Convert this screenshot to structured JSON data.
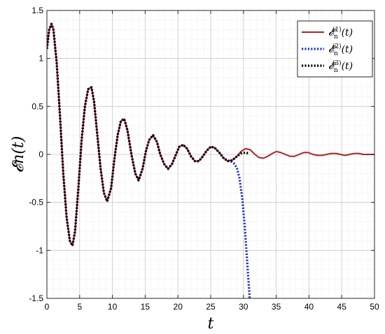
{
  "chart_data": {
    "type": "line",
    "xlabel": "t",
    "ylabel": "𝓔n(t)",
    "xlim": [
      0,
      50
    ],
    "ylim": [
      -1.5,
      1.5
    ],
    "xticks": [
      "0",
      "5",
      "10",
      "15",
      "20",
      "25",
      "30",
      "35",
      "40",
      "45",
      "50"
    ],
    "yticks": [
      "1.5",
      "1",
      "0.5",
      "0",
      "-0.5",
      "-1",
      "-1.5"
    ],
    "grid": true,
    "minor_grid": true,
    "legend_position": "top-right",
    "series": [
      {
        "name": "𝓔n(1)(t)",
        "label_main": "𝓔",
        "label_sub": "n",
        "label_sup": "(1)",
        "label_arg": "(t)",
        "style": "solid",
        "color": "#b22222",
        "x": [
          0,
          0.35,
          0.7,
          1.0,
          1.5,
          2.0,
          2.5,
          3.0,
          3.5,
          3.9,
          4.3,
          4.8,
          5.3,
          5.8,
          6.3,
          6.8,
          7.2,
          7.7,
          8.2,
          8.7,
          9.2,
          9.8,
          10.3,
          10.8,
          11.3,
          11.8,
          12.3,
          12.9,
          13.5,
          14.0,
          14.6,
          15.1,
          15.6,
          16.2,
          16.8,
          17.3,
          17.9,
          18.5,
          19.1,
          19.7,
          20.2,
          20.8,
          21.4,
          22.0,
          22.6,
          23.2,
          23.8,
          24.4,
          25.0,
          25.6,
          26.3,
          27.0,
          27.6,
          28.3,
          29.0,
          29.6,
          30.3,
          31.0,
          31.6,
          32.3,
          33.0,
          33.7,
          34.4,
          35.0,
          35.7,
          36.4,
          37.1,
          37.8,
          38.5,
          39.2,
          39.9,
          40.6,
          41.3,
          42.0,
          42.7,
          43.4,
          44.1,
          44.8,
          45.5,
          46.2,
          46.9,
          47.6,
          48.3,
          49.0,
          50.0
        ],
        "y": [
          1.1,
          1.3,
          1.36,
          1.3,
          0.95,
          0.4,
          -0.2,
          -0.65,
          -0.9,
          -0.95,
          -0.8,
          -0.35,
          0.15,
          0.5,
          0.68,
          0.7,
          0.55,
          0.2,
          -0.15,
          -0.4,
          -0.49,
          -0.35,
          -0.05,
          0.2,
          0.35,
          0.37,
          0.25,
          0.0,
          -0.2,
          -0.27,
          -0.15,
          0.03,
          0.15,
          0.2,
          0.13,
          0.0,
          -0.1,
          -0.15,
          -0.1,
          0.0,
          0.08,
          0.1,
          0.06,
          -0.02,
          -0.07,
          -0.07,
          -0.02,
          0.04,
          0.08,
          0.07,
          0.02,
          -0.04,
          -0.07,
          -0.06,
          -0.02,
          0.03,
          0.06,
          0.05,
          0.01,
          -0.03,
          -0.04,
          -0.02,
          0.01,
          0.03,
          0.02,
          0.0,
          -0.02,
          -0.02,
          0.0,
          0.02,
          0.02,
          0.0,
          -0.01,
          -0.01,
          0.0,
          0.01,
          0.01,
          0.0,
          -0.01,
          0.0,
          0.01,
          0.01,
          0.0,
          0.0,
          0.0
        ]
      },
      {
        "name": "𝓔n(2)(t)",
        "label_main": "𝓔",
        "label_sub": "n",
        "label_sup": "(2)",
        "label_arg": "(t)",
        "style": "dotted",
        "color": "#1f2fd0",
        "x": [
          0,
          0.35,
          0.7,
          1.0,
          1.5,
          2.0,
          2.5,
          3.0,
          3.5,
          3.9,
          4.3,
          4.8,
          5.3,
          5.8,
          6.3,
          6.8,
          7.2,
          7.7,
          8.2,
          8.7,
          9.2,
          9.8,
          10.3,
          10.8,
          11.3,
          11.8,
          12.3,
          12.9,
          13.5,
          14.0,
          14.6,
          15.1,
          15.6,
          16.2,
          16.8,
          17.3,
          17.9,
          18.5,
          19.1,
          19.7,
          20.2,
          20.8,
          21.4,
          22.0,
          22.6,
          23.2,
          23.8,
          24.4,
          25.0,
          25.6,
          26.3,
          27.0,
          27.5,
          28.0,
          28.5,
          29.0,
          29.4,
          29.8,
          30.2,
          30.5,
          30.8,
          30.95
        ],
        "y": [
          1.1,
          1.3,
          1.36,
          1.3,
          0.95,
          0.4,
          -0.2,
          -0.65,
          -0.9,
          -0.95,
          -0.8,
          -0.35,
          0.15,
          0.5,
          0.68,
          0.7,
          0.55,
          0.2,
          -0.15,
          -0.4,
          -0.49,
          -0.35,
          -0.05,
          0.2,
          0.35,
          0.37,
          0.25,
          0.0,
          -0.2,
          -0.27,
          -0.15,
          0.03,
          0.15,
          0.2,
          0.13,
          0.0,
          -0.1,
          -0.15,
          -0.1,
          0.0,
          0.08,
          0.1,
          0.06,
          -0.02,
          -0.07,
          -0.07,
          -0.02,
          0.04,
          0.08,
          0.07,
          0.02,
          -0.04,
          -0.06,
          -0.07,
          -0.09,
          -0.14,
          -0.25,
          -0.45,
          -0.75,
          -1.05,
          -1.35,
          -1.5
        ]
      },
      {
        "name": "𝓔n(3)(t)",
        "label_main": "𝓔",
        "label_sub": "n",
        "label_sup": "(3)",
        "label_arg": "(t)",
        "style": "dotted",
        "color": "#000000",
        "x": [
          0,
          0.35,
          0.7,
          1.0,
          1.5,
          2.0,
          2.5,
          3.0,
          3.5,
          3.9,
          4.3,
          4.8,
          5.3,
          5.8,
          6.3,
          6.8,
          7.2,
          7.7,
          8.2,
          8.7,
          9.2,
          9.8,
          10.3,
          10.8,
          11.3,
          11.8,
          12.3,
          12.9,
          13.5,
          14.0,
          14.6,
          15.1,
          15.6,
          16.2,
          16.8,
          17.3,
          17.9,
          18.5,
          19.1,
          19.7,
          20.2,
          20.8,
          21.4,
          22.0,
          22.6,
          23.2,
          23.8,
          24.4,
          25.0,
          25.6,
          26.3,
          27.0,
          27.6,
          28.3,
          29.0,
          29.6,
          30.3,
          30.8
        ],
        "y": [
          1.1,
          1.3,
          1.36,
          1.3,
          0.95,
          0.4,
          -0.2,
          -0.65,
          -0.9,
          -0.95,
          -0.8,
          -0.35,
          0.15,
          0.5,
          0.68,
          0.7,
          0.55,
          0.2,
          -0.15,
          -0.4,
          -0.49,
          -0.35,
          -0.05,
          0.2,
          0.35,
          0.37,
          0.25,
          0.0,
          -0.2,
          -0.27,
          -0.15,
          0.03,
          0.15,
          0.2,
          0.13,
          0.0,
          -0.1,
          -0.15,
          -0.1,
          0.0,
          0.08,
          0.1,
          0.06,
          -0.02,
          -0.07,
          -0.07,
          -0.02,
          0.04,
          0.08,
          0.07,
          0.02,
          -0.04,
          -0.07,
          -0.06,
          -0.02,
          0.01,
          0.02,
          0.01
        ]
      }
    ]
  }
}
